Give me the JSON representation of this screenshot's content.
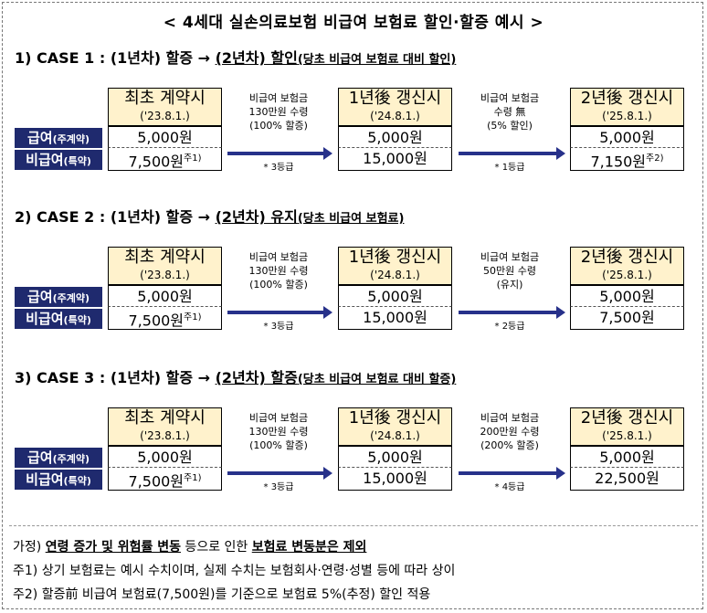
{
  "title": "< 4세대 실손의료보험 비급여 보험료 할인·할증 예시 >",
  "labels": {
    "main": "급여",
    "main_sub": "(주계약)",
    "rider": "비급여",
    "rider_sub": "(특약)"
  },
  "boxes": {
    "initial": {
      "head": "최초 계약시",
      "date": "('23.8.1.)"
    },
    "y1": {
      "head": "1년後 갱신시",
      "date": "('24.8.1.)"
    },
    "y2": {
      "head": "2년後 갱신시",
      "date": "('25.8.1.)"
    }
  },
  "cases": [
    {
      "t1": "1) CASE 1 : (1년차) 할증 → ",
      "t2": "(2년차) 할인",
      "t3": "(당초 비급여 보험료 대비 할인)",
      "note1": [
        "비급여 보험금",
        "130만원 수령",
        "(100% 할증)"
      ],
      "grade1": "* 3등급",
      "note2": [
        "비급여 보험금",
        "수령 無",
        "(5% 할인)"
      ],
      "grade2": "* 1등급",
      "init_main": "5,000원",
      "init_rider": "7,500원",
      "init_sup": "주1)",
      "y1_main": "5,000원",
      "y1_rider": "15,000원",
      "y2_main": "5,000원",
      "y2_rider": "7,150원",
      "y2_sup": "주2)"
    },
    {
      "t1": "2) CASE 2 : (1년차) 할증 → ",
      "t2": "(2년차) 유지",
      "t3": "(당초 비급여 보험료)",
      "note1": [
        "비급여 보험금",
        "130만원 수령",
        "(100% 할증)"
      ],
      "grade1": "* 3등급",
      "note2": [
        "비급여 보험금",
        "50만원 수령",
        "(유지)"
      ],
      "grade2": "* 2등급",
      "init_main": "5,000원",
      "init_rider": "7,500원",
      "init_sup": "주1)",
      "y1_main": "5,000원",
      "y1_rider": "15,000원",
      "y2_main": "5,000원",
      "y2_rider": "7,500원",
      "y2_sup": ""
    },
    {
      "t1": "3) CASE 3 : (1년차) 할증 → ",
      "t2": "(2년차) 할증",
      "t3": "(당초 비급여 보험료 대비 할증)",
      "note1": [
        "비급여 보험금",
        "130만원 수령",
        "(100% 할증)"
      ],
      "grade1": "* 3등급",
      "note2": [
        "비급여 보험금",
        "200만원 수령",
        "(200% 할증)"
      ],
      "grade2": "* 4등급",
      "init_main": "5,000원",
      "init_rider": "7,500원",
      "init_sup": "주1)",
      "y1_main": "5,000원",
      "y1_rider": "15,000원",
      "y2_main": "5,000원",
      "y2_rider": "22,500원",
      "y2_sup": ""
    }
  ],
  "footnotes": {
    "assume_pre": "가정) ",
    "assume_b1": "연령 증가 및 위험률 변동",
    "assume_mid": " 등으로 인한 ",
    "assume_b2": "보험료 변동분은 제외",
    "n1": "주1) 상기 보험료는 예시 수치이며, 실제 수치는 보험회사·연령·성별 등에 따라 상이",
    "n2": "주2) 할증前 비급여 보험료(7,500원)를 기준으로 보험료 5%(추정) 할인 적용"
  }
}
